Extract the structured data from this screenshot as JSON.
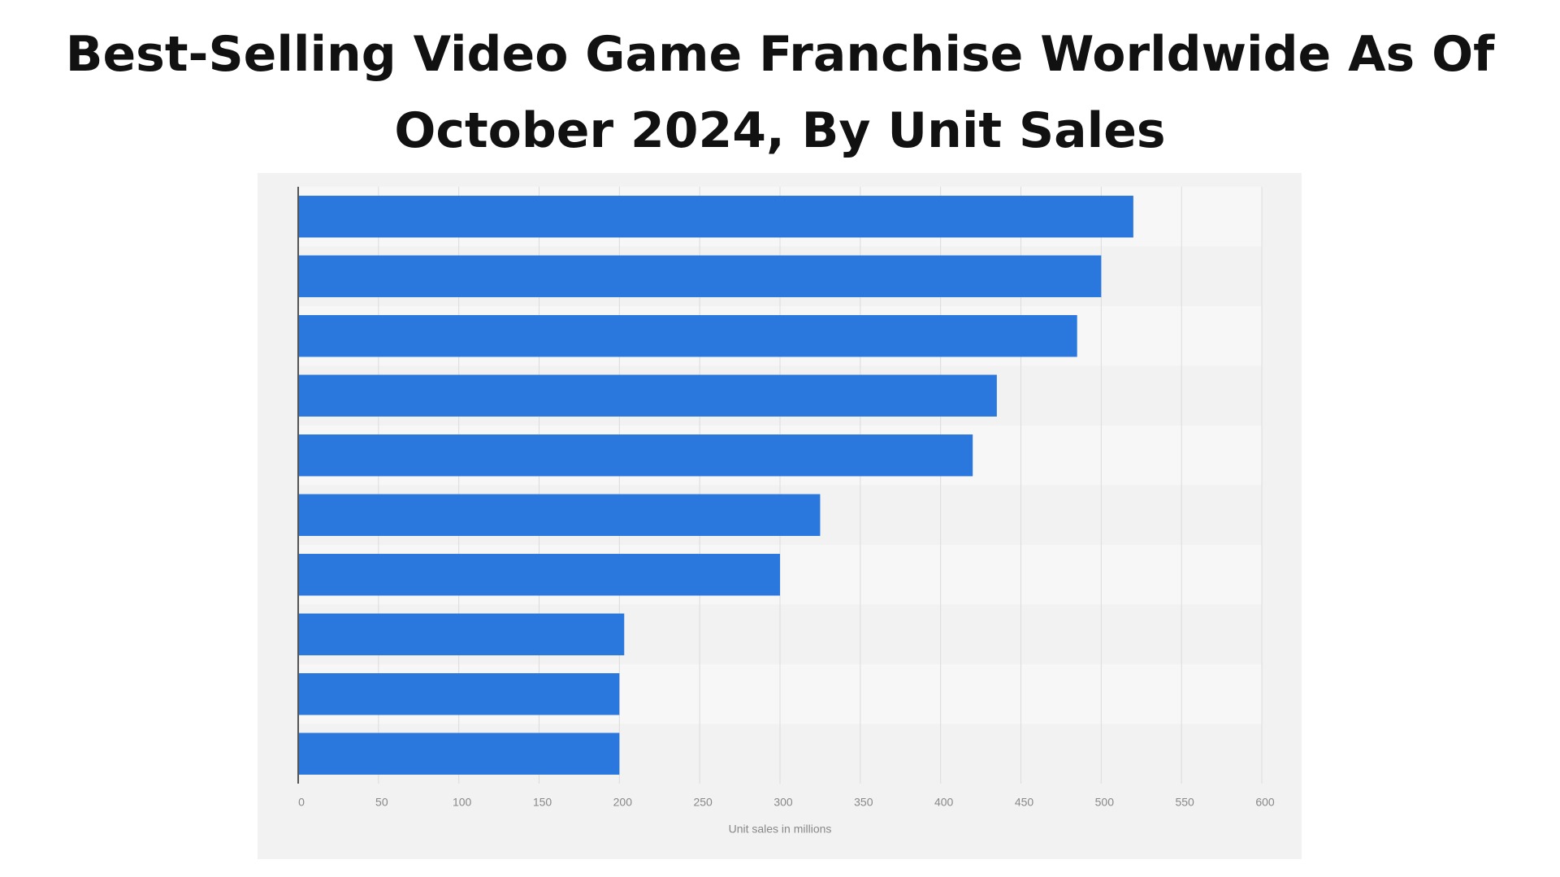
{
  "chart_data": {
    "type": "bar",
    "orientation": "horizontal",
    "title": "Best-Selling Video Game Franchise Worldwide As Of October 2024, By Unit Sales",
    "xlabel": "Unit sales in millions",
    "categories": [
      null,
      null,
      null,
      null,
      null,
      null,
      null,
      null,
      null,
      null
    ],
    "values": [
      520,
      500,
      485,
      435,
      420,
      325,
      300,
      203,
      200,
      200
    ],
    "color": "#2a77dd",
    "xlim": [
      0,
      600
    ],
    "xticks": [
      0,
      50,
      100,
      150,
      200,
      250,
      300,
      350,
      400,
      450,
      500,
      550,
      600
    ],
    "grid": true
  }
}
